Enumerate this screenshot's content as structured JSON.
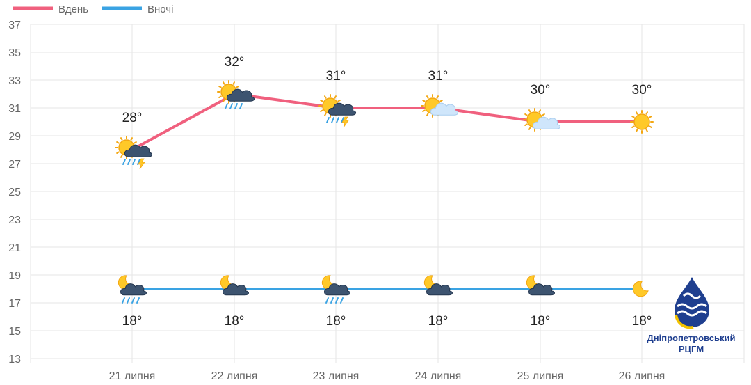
{
  "chart_data": {
    "type": "line",
    "categories": [
      "21 липня",
      "22 липня",
      "23 липня",
      "24 липня",
      "25 липня",
      "26 липня"
    ],
    "series": [
      {
        "name": "Вдень",
        "color": "#f0607e",
        "values": [
          28,
          32,
          31,
          31,
          30,
          30
        ],
        "labels": [
          "28°",
          "32°",
          "31°",
          "31°",
          "30°",
          "30°"
        ],
        "icons": [
          "sun-cloud-rain-thunder-icon",
          "sun-cloud-rain-icon",
          "sun-cloud-rain-thunder-icon",
          "sun-cloud-icon",
          "sun-cloud-icon",
          "sun-icon"
        ]
      },
      {
        "name": "Вночі",
        "color": "#3aa3e3",
        "values": [
          18,
          18,
          18,
          18,
          18,
          18
        ],
        "labels": [
          "18°",
          "18°",
          "18°",
          "18°",
          "18°",
          "18°"
        ],
        "icons": [
          "moon-cloud-rain-icon",
          "moon-cloud-icon",
          "moon-cloud-rain-icon",
          "moon-cloud-icon",
          "moon-cloud-icon",
          "moon-icon"
        ]
      }
    ],
    "ylim": [
      13,
      37
    ],
    "yticks": [
      "13",
      "15",
      "17",
      "19",
      "21",
      "23",
      "25",
      "27",
      "29",
      "31",
      "33",
      "35",
      "37"
    ],
    "grid": true,
    "legend": "top-left"
  },
  "logo": {
    "line1": "Дніпропетровський",
    "line2": "РЦГМ",
    "icon": "drop-logo-icon"
  }
}
